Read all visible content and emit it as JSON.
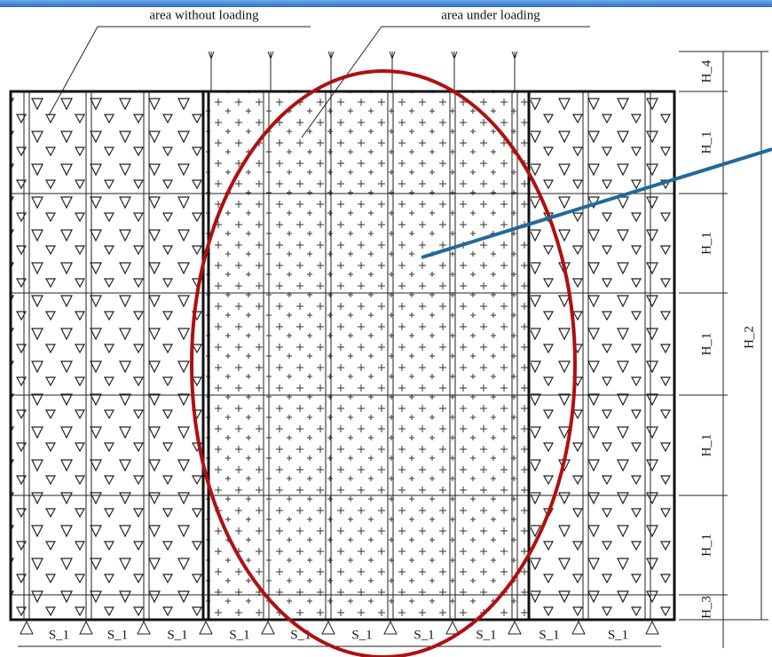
{
  "labels": {
    "area_without_loading": "area without loading",
    "area_under_loading": "area under loading"
  },
  "heights": [
    "H_4",
    "H_1",
    "H_1",
    "H_1",
    "H_1",
    "H_1",
    "H_3"
  ],
  "total_height": "H_2",
  "spacings": [
    "S_1",
    "S_1",
    "S_1",
    "S_1",
    "S_1",
    "S_1",
    "S_1",
    "S_1",
    "S_1",
    "S_1"
  ]
}
